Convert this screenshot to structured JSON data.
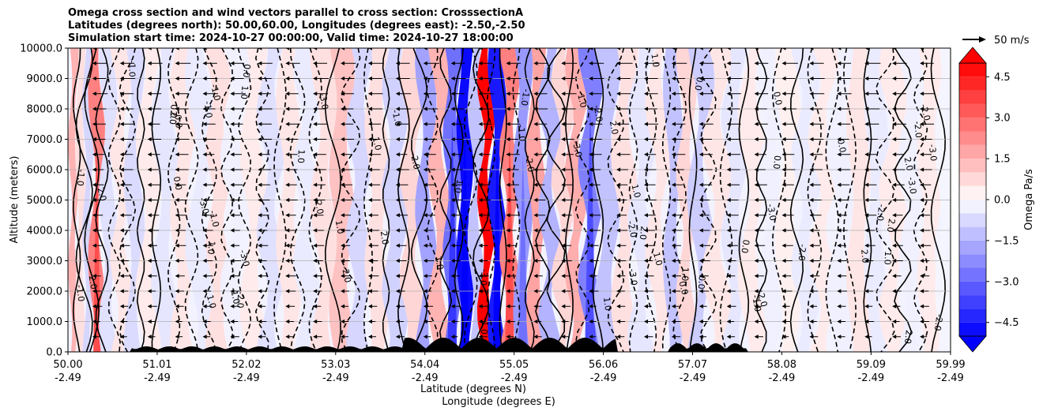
{
  "chart_data": {
    "type": "heatmap",
    "title": [
      "Omega cross section and wind vectors parallel to cross section: CrosssectionA",
      "Latitudes (degrees north): 50.00,60.00, Longitudes (degrees east): -2.50,-2.50",
      "Simulation start time: 2024-10-27 00:00:00, Valid time: 2024-10-27 18:00:00"
    ],
    "xlabel_lines": [
      "Latitude (degrees N)",
      "Longitude (degrees E)"
    ],
    "ylabel": "Altitude (meters)",
    "x_ticks": [
      {
        "lat": "50.00",
        "lon": "-2.49"
      },
      {
        "lat": "51.01",
        "lon": "-2.49"
      },
      {
        "lat": "52.02",
        "lon": "-2.49"
      },
      {
        "lat": "53.03",
        "lon": "-2.49"
      },
      {
        "lat": "54.04",
        "lon": "-2.49"
      },
      {
        "lat": "55.05",
        "lon": "-2.49"
      },
      {
        "lat": "56.06",
        "lon": "-2.49"
      },
      {
        "lat": "57.07",
        "lon": "-2.49"
      },
      {
        "lat": "58.08",
        "lon": "-2.49"
      },
      {
        "lat": "59.09",
        "lon": "-2.49"
      },
      {
        "lat": "59.99",
        "lon": "-2.49"
      }
    ],
    "xlim": [
      50.0,
      59.99
    ],
    "y_ticks": [
      "0.0",
      "1000.0",
      "2000.0",
      "3000.0",
      "4000.0",
      "5000.0",
      "6000.0",
      "7000.0",
      "8000.0",
      "9000.0",
      "10000.0"
    ],
    "ylim": [
      0,
      10000
    ],
    "grid": "horizontal",
    "colorbar": {
      "label": "Omega Pa/s",
      "ticks": [
        "4.5",
        "3.0",
        "1.5",
        "0.0",
        "−1.5",
        "−3.0",
        "−4.5"
      ],
      "range": [
        -5.0,
        5.0
      ],
      "colormap": "bwr",
      "extend": "both"
    },
    "vector_key": "50 m/s",
    "contour_labels": [
      "0.0",
      "-1.0",
      "1.0",
      "-2.0",
      "2.0",
      "-3.0"
    ],
    "omega_bands": [
      {
        "lat": 50.05,
        "omega": 1.5
      },
      {
        "lat": 50.15,
        "omega": 0.6
      },
      {
        "lat": 50.22,
        "omega": -0.8
      },
      {
        "lat": 50.32,
        "omega": 2.5
      },
      {
        "lat": 50.45,
        "omega": -0.6
      },
      {
        "lat": 50.6,
        "omega": 0.5
      },
      {
        "lat": 50.75,
        "omega": -0.7
      },
      {
        "lat": 50.9,
        "omega": 0.4
      },
      {
        "lat": 51.1,
        "omega": -0.5
      },
      {
        "lat": 51.3,
        "omega": 0.5
      },
      {
        "lat": 51.5,
        "omega": -0.4
      },
      {
        "lat": 51.7,
        "omega": 0.6
      },
      {
        "lat": 51.9,
        "omega": -0.3
      },
      {
        "lat": 52.1,
        "omega": 0.4
      },
      {
        "lat": 52.3,
        "omega": -0.6
      },
      {
        "lat": 52.5,
        "omega": 0.5
      },
      {
        "lat": 52.7,
        "omega": -0.4
      },
      {
        "lat": 52.9,
        "omega": 0.6
      },
      {
        "lat": 53.1,
        "omega": 1.2
      },
      {
        "lat": 53.3,
        "omega": -0.8
      },
      {
        "lat": 53.5,
        "omega": 0.6
      },
      {
        "lat": 53.7,
        "omega": -0.9
      },
      {
        "lat": 53.9,
        "omega": 0.8
      },
      {
        "lat": 54.05,
        "omega": -1.8
      },
      {
        "lat": 54.2,
        "omega": 1.5
      },
      {
        "lat": 54.35,
        "omega": -2.8
      },
      {
        "lat": 54.5,
        "omega": -4.8
      },
      {
        "lat": 54.62,
        "omega": -1.2
      },
      {
        "lat": 54.73,
        "omega": 5.0
      },
      {
        "lat": 54.85,
        "omega": -4.5
      },
      {
        "lat": 55.0,
        "omega": 2.5
      },
      {
        "lat": 55.15,
        "omega": -2.0
      },
      {
        "lat": 55.3,
        "omega": 1.8
      },
      {
        "lat": 55.45,
        "omega": -1.5
      },
      {
        "lat": 55.6,
        "omega": 0.8
      },
      {
        "lat": 55.75,
        "omega": 1.6
      },
      {
        "lat": 55.9,
        "omega": -2.5
      },
      {
        "lat": 56.1,
        "omega": -1.2
      },
      {
        "lat": 56.3,
        "omega": 0.6
      },
      {
        "lat": 56.5,
        "omega": -0.5
      },
      {
        "lat": 56.7,
        "omega": 0.5
      },
      {
        "lat": 56.85,
        "omega": -1.2
      },
      {
        "lat": 57.0,
        "omega": 0.8
      },
      {
        "lat": 57.15,
        "omega": -1.0
      },
      {
        "lat": 57.35,
        "omega": 0.5
      },
      {
        "lat": 57.55,
        "omega": -0.5
      },
      {
        "lat": 57.75,
        "omega": 0.4
      },
      {
        "lat": 57.95,
        "omega": -0.3
      },
      {
        "lat": 58.15,
        "omega": 0.3
      },
      {
        "lat": 58.35,
        "omega": -0.4
      },
      {
        "lat": 58.55,
        "omega": 0.4
      },
      {
        "lat": 58.75,
        "omega": -0.3
      },
      {
        "lat": 58.95,
        "omega": 0.5
      },
      {
        "lat": 59.15,
        "omega": -0.4
      },
      {
        "lat": 59.35,
        "omega": 0.4
      },
      {
        "lat": 59.55,
        "omega": -0.3
      },
      {
        "lat": 59.75,
        "omega": 0.4
      },
      {
        "lat": 59.95,
        "omega": -0.2
      }
    ]
  },
  "colors": {
    "positive": "#ff0000",
    "negative": "#0000ff",
    "neutral": "#f3f3ff",
    "terrain": "#000000",
    "grid": "#b0b0b0"
  }
}
